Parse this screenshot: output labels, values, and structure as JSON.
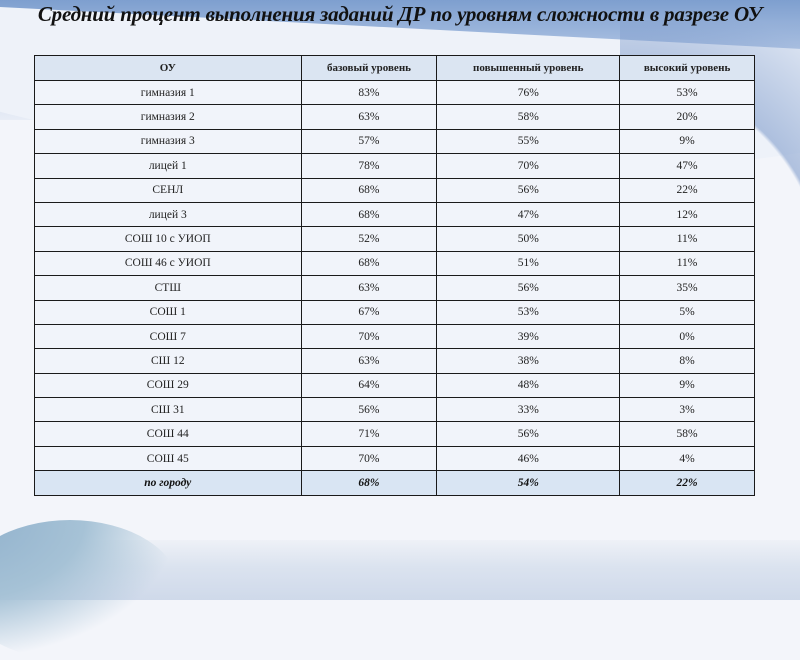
{
  "title": "Средний процент выполнения заданий ДР по уровням сложности в разрезе ОУ",
  "table": {
    "headers": [
      "ОУ",
      "базовый уровень",
      "повышенный уровень",
      "высокий уровень"
    ],
    "rows": [
      [
        "гимназия 1",
        "83%",
        "76%",
        "53%"
      ],
      [
        "гимназия 2",
        "63%",
        "58%",
        "20%"
      ],
      [
        "гимназия 3",
        "57%",
        "55%",
        "9%"
      ],
      [
        "лицей 1",
        "78%",
        "70%",
        "47%"
      ],
      [
        "СЕНЛ",
        "68%",
        "56%",
        "22%"
      ],
      [
        "лицей 3",
        "68%",
        "47%",
        "12%"
      ],
      [
        "СОШ 10 с УИОП",
        "52%",
        "50%",
        "11%"
      ],
      [
        "СОШ 46 с УИОП",
        "68%",
        "51%",
        "11%"
      ],
      [
        "СТШ",
        "63%",
        "56%",
        "35%"
      ],
      [
        "СОШ 1",
        "67%",
        "53%",
        "5%"
      ],
      [
        "СОШ 7",
        "70%",
        "39%",
        "0%"
      ],
      [
        "СШ 12",
        "63%",
        "38%",
        "8%"
      ],
      [
        "СОШ 29",
        "64%",
        "48%",
        "9%"
      ],
      [
        "СШ 31",
        "56%",
        "33%",
        "3%"
      ],
      [
        "СОШ 44",
        "71%",
        "56%",
        "58%"
      ],
      [
        "СОШ 45",
        "70%",
        "46%",
        "4%"
      ]
    ],
    "total": [
      "по городу",
      "68%",
      "54%",
      "22%"
    ]
  },
  "colors": {
    "header_bg": "#dbe5f2",
    "cell_bg": "#f1f4fa",
    "total_bg": "#d9e5f3",
    "border": "#1a1a1a",
    "banner_blue": "#7e9fcf"
  }
}
